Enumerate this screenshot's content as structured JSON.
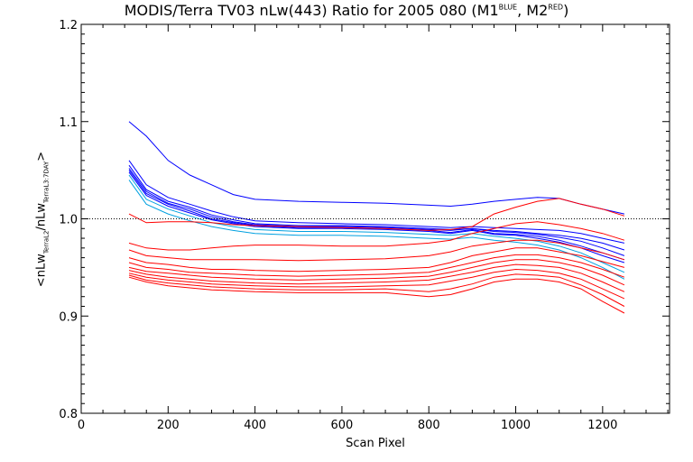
{
  "chart_data": {
    "type": "line",
    "title": {
      "main": "MODIS/Terra TV03 nLw(443) Ratio for 2005 080 (M1",
      "sup1": "BLUE",
      "mid": ", M2",
      "sup2": "RED",
      "end": ")"
    },
    "xlabel": "Scan Pixel",
    "ylabel": {
      "pre": "<nLw",
      "sub1": "TerraL2",
      "mid": "/nLw",
      "sub2": "TerraL3:7DAY",
      "end": ">"
    },
    "xlim": [
      0,
      1354
    ],
    "ylim": [
      0.8,
      1.2
    ],
    "x_ticks": [
      0,
      200,
      400,
      600,
      800,
      1000,
      1200
    ],
    "y_ticks": [
      0.8,
      0.9,
      1.0,
      1.1,
      1.2
    ],
    "y_tick_labels": [
      "0.8",
      "0.9",
      "1.0",
      "1.1",
      "1.2"
    ],
    "reference_line": 1.0,
    "colors": {
      "blue": "#0000ff",
      "cyan": "#00a0e0",
      "red": "#ff0000",
      "axis": "#000000"
    },
    "x": [
      110,
      150,
      200,
      250,
      300,
      350,
      400,
      500,
      600,
      700,
      800,
      850,
      900,
      950,
      1000,
      1050,
      1100,
      1150,
      1200,
      1250
    ],
    "series": [
      {
        "color": "blue",
        "values": [
          1.1,
          1.085,
          1.06,
          1.045,
          1.035,
          1.025,
          1.02,
          1.018,
          1.017,
          1.016,
          1.014,
          1.013,
          1.015,
          1.018,
          1.02,
          1.022,
          1.021,
          1.015,
          1.01,
          1.005
        ]
      },
      {
        "color": "blue",
        "values": [
          1.06,
          1.035,
          1.022,
          1.015,
          1.008,
          1.002,
          0.998,
          0.996,
          0.995,
          0.994,
          0.992,
          0.991,
          0.992,
          0.991,
          0.99,
          0.989,
          0.988,
          0.985,
          0.98,
          0.975
        ]
      },
      {
        "color": "blue",
        "values": [
          1.055,
          1.03,
          1.018,
          1.012,
          1.004,
          0.999,
          0.995,
          0.993,
          0.993,
          0.992,
          0.99,
          0.989,
          0.99,
          0.988,
          0.987,
          0.985,
          0.983,
          0.98,
          0.975,
          0.968
        ]
      },
      {
        "color": "blue",
        "values": [
          1.052,
          1.028,
          1.016,
          1.01,
          1.002,
          0.997,
          0.994,
          0.992,
          0.992,
          0.991,
          0.989,
          0.988,
          0.99,
          0.987,
          0.986,
          0.984,
          0.981,
          0.977,
          0.97,
          0.962
        ]
      },
      {
        "color": "blue",
        "values": [
          1.05,
          1.026,
          1.015,
          1.008,
          1.0,
          0.996,
          0.993,
          0.991,
          0.991,
          0.99,
          0.988,
          0.986,
          0.989,
          0.985,
          0.984,
          0.982,
          0.978,
          0.972,
          0.965,
          0.958
        ]
      },
      {
        "color": "blue",
        "values": [
          1.048,
          1.024,
          1.013,
          1.006,
          0.999,
          0.995,
          0.992,
          0.99,
          0.99,
          0.989,
          0.987,
          0.985,
          0.988,
          0.984,
          0.983,
          0.98,
          0.976,
          0.97,
          0.962,
          0.955
        ]
      },
      {
        "color": "cyan",
        "values": [
          1.045,
          1.02,
          1.01,
          1.003,
          0.996,
          0.992,
          0.989,
          0.987,
          0.987,
          0.986,
          0.984,
          0.983,
          0.985,
          0.982,
          0.98,
          0.977,
          0.972,
          0.965,
          0.955,
          0.945
        ]
      },
      {
        "color": "cyan",
        "values": [
          1.04,
          1.015,
          1.005,
          0.998,
          0.992,
          0.988,
          0.985,
          0.983,
          0.983,
          0.982,
          0.98,
          0.979,
          0.981,
          0.978,
          0.976,
          0.973,
          0.968,
          0.96,
          0.95,
          0.938
        ]
      },
      {
        "color": "red",
        "values": [
          1.005,
          0.996,
          0.997,
          0.997,
          0.996,
          0.994,
          0.993,
          0.992,
          0.991,
          0.99,
          0.988,
          0.989,
          0.992,
          1.005,
          1.012,
          1.018,
          1.021,
          1.015,
          1.01,
          1.003
        ]
      },
      {
        "color": "red",
        "values": [
          0.975,
          0.97,
          0.968,
          0.968,
          0.97,
          0.972,
          0.973,
          0.973,
          0.972,
          0.972,
          0.975,
          0.978,
          0.985,
          0.99,
          0.995,
          0.997,
          0.994,
          0.99,
          0.985,
          0.978
        ]
      },
      {
        "color": "red",
        "values": [
          0.968,
          0.962,
          0.96,
          0.958,
          0.958,
          0.958,
          0.958,
          0.957,
          0.958,
          0.959,
          0.962,
          0.966,
          0.972,
          0.975,
          0.978,
          0.978,
          0.975,
          0.97,
          0.965,
          0.958
        ]
      },
      {
        "color": "red",
        "values": [
          0.96,
          0.955,
          0.953,
          0.95,
          0.948,
          0.948,
          0.947,
          0.946,
          0.947,
          0.948,
          0.95,
          0.955,
          0.962,
          0.966,
          0.97,
          0.97,
          0.966,
          0.962,
          0.956,
          0.95
        ]
      },
      {
        "color": "red",
        "values": [
          0.955,
          0.95,
          0.948,
          0.945,
          0.944,
          0.943,
          0.942,
          0.941,
          0.942,
          0.943,
          0.945,
          0.95,
          0.955,
          0.96,
          0.963,
          0.963,
          0.96,
          0.955,
          0.948,
          0.94
        ]
      },
      {
        "color": "red",
        "values": [
          0.95,
          0.946,
          0.944,
          0.942,
          0.94,
          0.939,
          0.938,
          0.937,
          0.938,
          0.939,
          0.941,
          0.945,
          0.95,
          0.955,
          0.958,
          0.958,
          0.955,
          0.95,
          0.942,
          0.932
        ]
      },
      {
        "color": "red",
        "values": [
          0.947,
          0.943,
          0.94,
          0.938,
          0.936,
          0.935,
          0.934,
          0.933,
          0.934,
          0.935,
          0.937,
          0.941,
          0.945,
          0.95,
          0.953,
          0.952,
          0.95,
          0.944,
          0.935,
          0.925
        ]
      },
      {
        "color": "red",
        "values": [
          0.944,
          0.94,
          0.937,
          0.935,
          0.933,
          0.932,
          0.931,
          0.93,
          0.93,
          0.931,
          0.932,
          0.936,
          0.94,
          0.945,
          0.948,
          0.947,
          0.944,
          0.938,
          0.928,
          0.918
        ]
      },
      {
        "color": "red",
        "values": [
          0.942,
          0.937,
          0.934,
          0.932,
          0.93,
          0.929,
          0.928,
          0.927,
          0.927,
          0.928,
          0.925,
          0.928,
          0.933,
          0.94,
          0.943,
          0.942,
          0.94,
          0.932,
          0.922,
          0.91
        ]
      },
      {
        "color": "red",
        "values": [
          0.94,
          0.935,
          0.931,
          0.929,
          0.927,
          0.926,
          0.925,
          0.924,
          0.924,
          0.924,
          0.92,
          0.922,
          0.928,
          0.935,
          0.938,
          0.938,
          0.935,
          0.928,
          0.915,
          0.903
        ]
      }
    ]
  }
}
